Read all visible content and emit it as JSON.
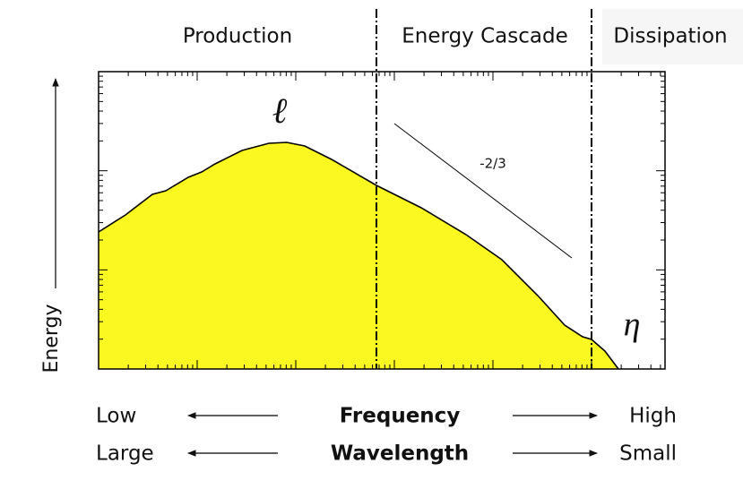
{
  "regions": {
    "production": "Production",
    "cascade": "Energy Cascade",
    "dissipation": "Dissipation"
  },
  "annotations": {
    "length_scale": "ℓ",
    "slope": "-2/3",
    "kolmogorov": "η"
  },
  "y_axis_label": "Energy",
  "frequency_row": {
    "left": "Low",
    "center": "Frequency",
    "right": "High"
  },
  "wavelength_row": {
    "left": "Large",
    "center": "Wavelength",
    "right": "Small"
  }
}
